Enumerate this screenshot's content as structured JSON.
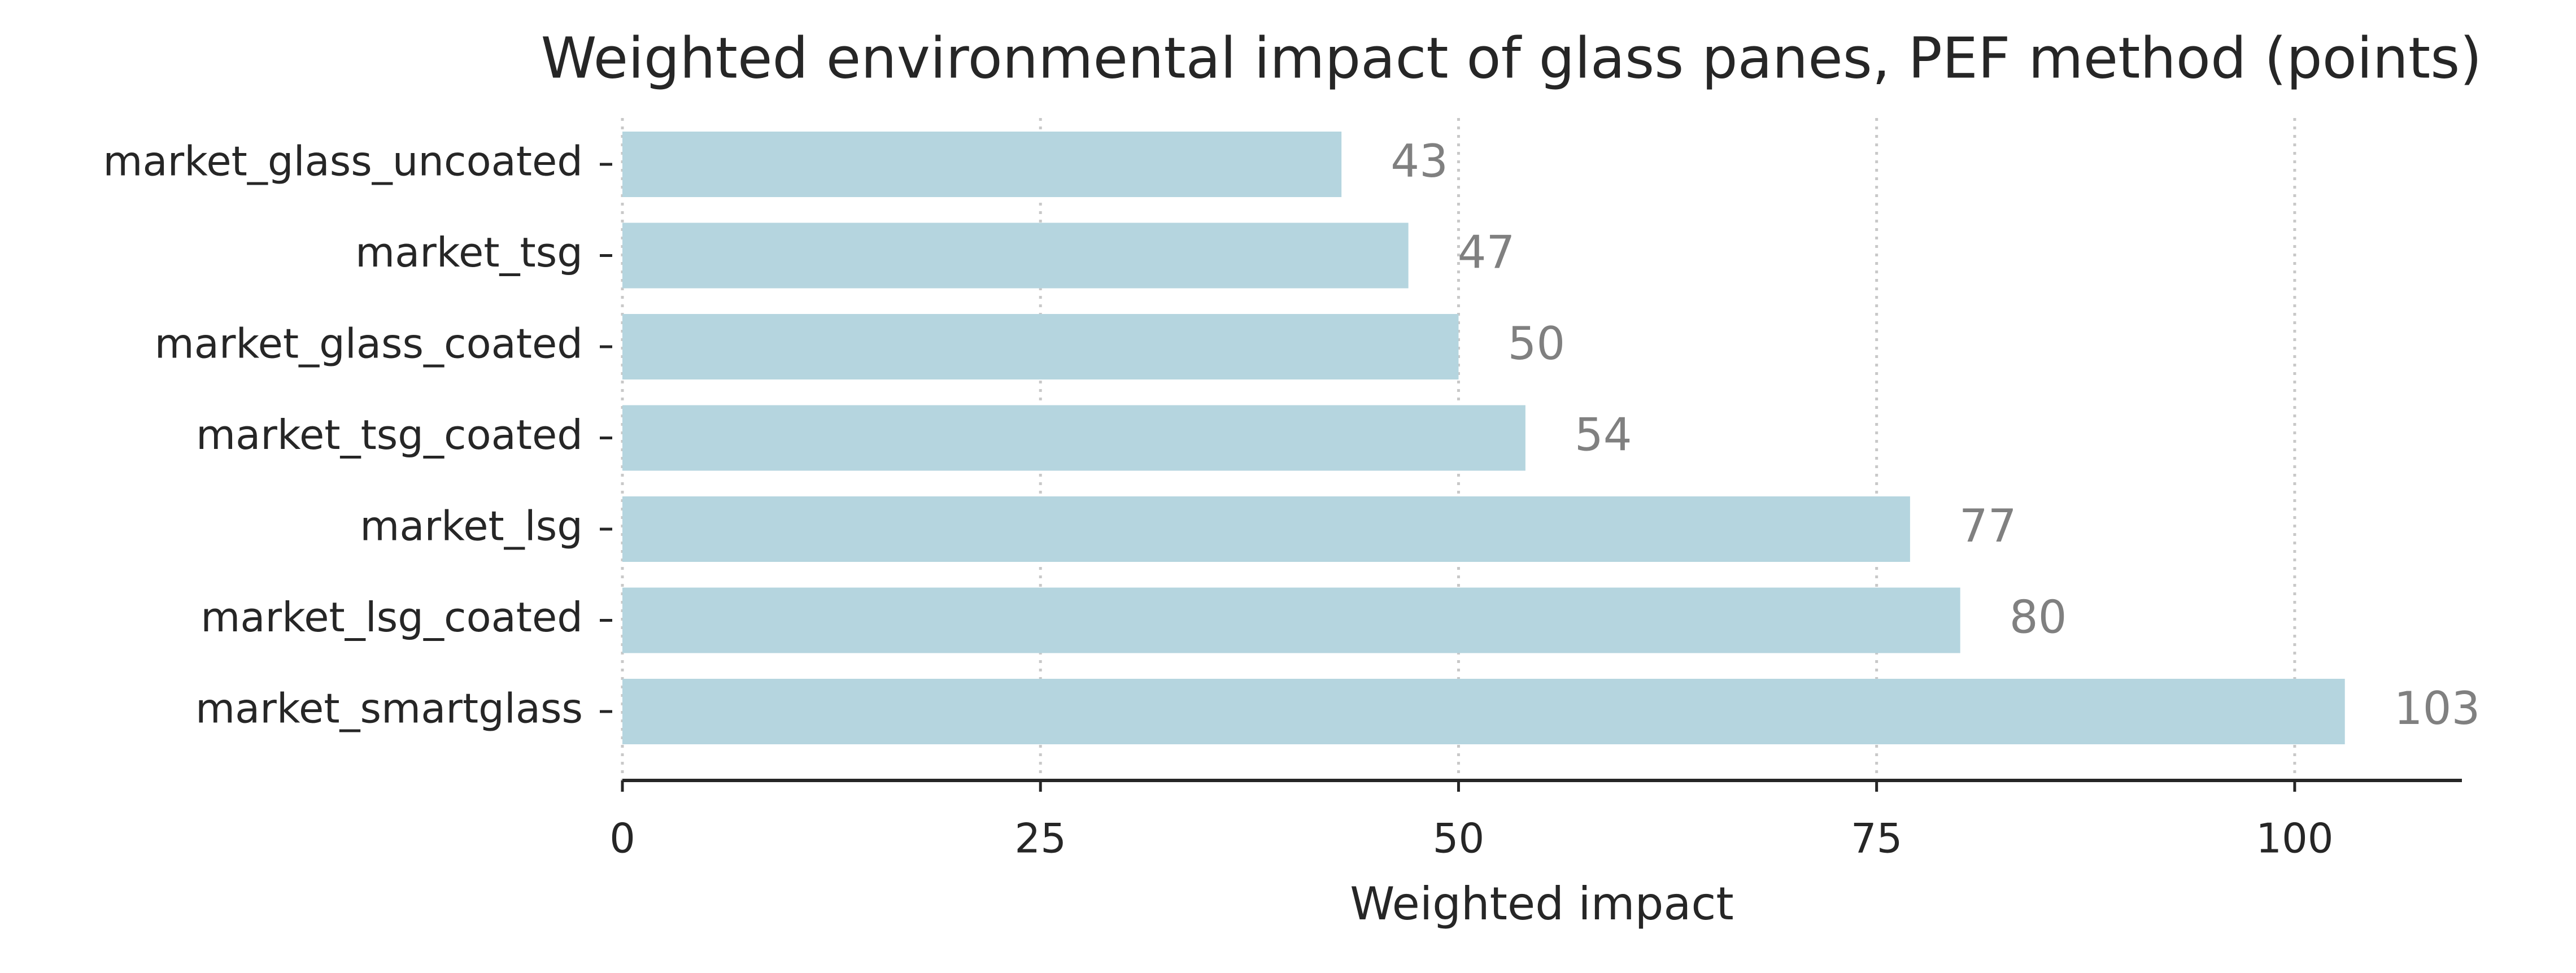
{
  "chart_data": {
    "type": "bar",
    "orientation": "horizontal",
    "title": "Weighted environmental impact of glass panes, PEF method (points)",
    "xlabel": "Weighted impact",
    "categories": [
      "market_glass_uncoated",
      "market_tsg",
      "market_glass_coated",
      "market_tsg_coated",
      "market_lsg",
      "market_lsg_coated",
      "market_smartglass"
    ],
    "values": [
      43,
      47,
      50,
      54,
      77,
      80,
      103
    ],
    "color": "#b5d5df",
    "xlim": [
      0,
      110
    ],
    "xticks": [
      0,
      25,
      50,
      75,
      100
    ],
    "grid": true
  }
}
